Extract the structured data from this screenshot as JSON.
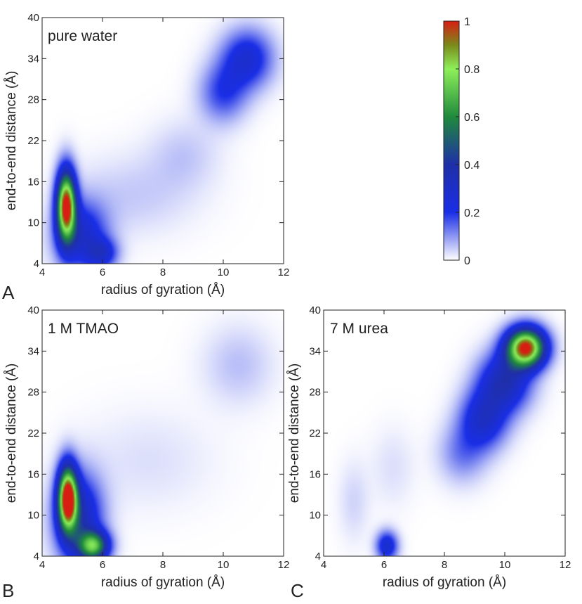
{
  "chart_data": [
    {
      "type": "heatmap",
      "panel_letter": "A",
      "inset_label": "pure water",
      "xlabel": "radius of gyration (Å)",
      "ylabel": "end-to-end distance (Å)",
      "xlim": [
        4,
        12
      ],
      "ylim": [
        4,
        40
      ],
      "xticks": [
        4,
        6,
        8,
        10,
        12
      ],
      "yticks": [
        4,
        10,
        16,
        22,
        28,
        34,
        40
      ],
      "density_features": [
        {
          "x": 4.8,
          "y": 12.5,
          "sx": 0.22,
          "sy": 3.5,
          "amp": 1.0
        },
        {
          "x": 5.3,
          "y": 8.0,
          "sx": 0.6,
          "sy": 3.5,
          "amp": 0.28
        },
        {
          "x": 6.0,
          "y": 5.5,
          "sx": 0.35,
          "sy": 1.5,
          "amp": 0.22
        },
        {
          "x": 7.0,
          "y": 14.0,
          "sx": 1.4,
          "sy": 4.0,
          "amp": 0.05
        },
        {
          "x": 8.7,
          "y": 20.0,
          "sx": 0.8,
          "sy": 3.5,
          "amp": 0.05
        },
        {
          "x": 10.0,
          "y": 29.0,
          "sx": 0.55,
          "sy": 3.0,
          "amp": 0.18
        },
        {
          "x": 10.8,
          "y": 34.0,
          "sx": 0.6,
          "sy": 3.0,
          "amp": 0.26
        }
      ]
    },
    {
      "type": "heatmap",
      "panel_letter": "B",
      "inset_label": "1 M TMAO",
      "xlabel": "radius of gyration (Å)",
      "ylabel": "end-to-end distance (Å)",
      "xlim": [
        4,
        12
      ],
      "ylim": [
        4,
        40
      ],
      "xticks": [
        4,
        6,
        8,
        10,
        12
      ],
      "yticks": [
        4,
        10,
        16,
        22,
        28,
        34,
        40
      ],
      "density_features": [
        {
          "x": 4.85,
          "y": 12.5,
          "sx": 0.22,
          "sy": 3.2,
          "amp": 1.0
        },
        {
          "x": 5.2,
          "y": 9.5,
          "sx": 0.55,
          "sy": 4.5,
          "amp": 0.35
        },
        {
          "x": 5.7,
          "y": 5.5,
          "sx": 0.35,
          "sy": 1.5,
          "amp": 0.62
        },
        {
          "x": 7.5,
          "y": 18.0,
          "sx": 1.5,
          "sy": 5.0,
          "amp": 0.03
        },
        {
          "x": 10.5,
          "y": 32.0,
          "sx": 0.8,
          "sy": 4.0,
          "amp": 0.06
        }
      ]
    },
    {
      "type": "heatmap",
      "panel_letter": "C",
      "inset_label": "7 M urea",
      "xlabel": "radius of gyration (Å)",
      "ylabel": "end-to-end distance (Å)",
      "xlim": [
        4,
        12
      ],
      "ylim": [
        4,
        40
      ],
      "xticks": [
        4,
        6,
        8,
        10,
        12
      ],
      "yticks": [
        4,
        10,
        16,
        22,
        28,
        34,
        40
      ],
      "density_features": [
        {
          "x": 10.7,
          "y": 34.5,
          "sx": 0.45,
          "sy": 2.0,
          "amp": 1.0
        },
        {
          "x": 10.0,
          "y": 29.5,
          "sx": 0.6,
          "sy": 3.0,
          "amp": 0.35
        },
        {
          "x": 9.3,
          "y": 24.0,
          "sx": 0.55,
          "sy": 3.0,
          "amp": 0.28
        },
        {
          "x": 8.6,
          "y": 19.0,
          "sx": 0.55,
          "sy": 3.0,
          "amp": 0.12
        },
        {
          "x": 6.1,
          "y": 5.5,
          "sx": 0.25,
          "sy": 1.5,
          "amp": 0.28
        },
        {
          "x": 5.0,
          "y": 12.0,
          "sx": 0.35,
          "sy": 4.0,
          "amp": 0.04
        },
        {
          "x": 6.3,
          "y": 17.0,
          "sx": 0.5,
          "sy": 4.0,
          "amp": 0.03
        }
      ]
    }
  ],
  "colorbar": {
    "min": 0,
    "max": 1,
    "ticks": [
      0,
      0.2,
      0.4,
      0.6,
      0.8,
      1
    ],
    "tick_labels": [
      "0",
      "0.2",
      "0.4",
      "0.6",
      "0.8",
      "1"
    ],
    "colors": [
      {
        "v": 0.0,
        "c": "#ffffff"
      },
      {
        "v": 0.2,
        "c": "#1a2ee6"
      },
      {
        "v": 0.4,
        "c": "#1f2fa8"
      },
      {
        "v": 0.6,
        "c": "#1f8a3c"
      },
      {
        "v": 0.8,
        "c": "#8ef05a"
      },
      {
        "v": 0.9,
        "c": "#7a8a1a"
      },
      {
        "v": 1.0,
        "c": "#d81e12"
      }
    ]
  }
}
